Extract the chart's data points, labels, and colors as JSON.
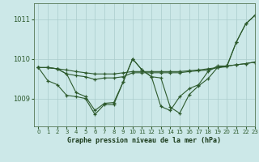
{
  "xlabel_label": "Graphe pression niveau de la mer (hPa)",
  "background_color": "#cce8e8",
  "grid_color": "#aacccc",
  "line_color": "#2d5a2d",
  "xlim": [
    -0.5,
    23
  ],
  "ylim": [
    1008.3,
    1011.4
  ],
  "yticks": [
    1009,
    1010,
    1011
  ],
  "xticks": [
    0,
    1,
    2,
    3,
    4,
    5,
    6,
    7,
    8,
    9,
    10,
    11,
    12,
    13,
    14,
    15,
    16,
    17,
    18,
    19,
    20,
    21,
    22,
    23
  ],
  "series": [
    [
      1009.78,
      1009.78,
      1009.75,
      1009.62,
      1009.15,
      1009.05,
      1008.7,
      1008.88,
      1008.9,
      1009.42,
      1010.0,
      1009.72,
      1009.55,
      1009.52,
      1008.78,
      1008.63,
      1009.1,
      1009.32,
      1009.5,
      1009.78,
      1009.8,
      1010.42,
      1010.88,
      1011.1
    ],
    [
      1009.78,
      1009.78,
      1009.75,
      1009.72,
      1009.68,
      1009.65,
      1009.62,
      1009.62,
      1009.62,
      1009.65,
      1009.68,
      1009.68,
      1009.68,
      1009.68,
      1009.68,
      1009.68,
      1009.7,
      1009.72,
      1009.75,
      1009.78,
      1009.82,
      1009.85,
      1009.88,
      1009.92
    ],
    [
      1009.78,
      1009.45,
      1009.35,
      1009.08,
      1009.05,
      1009.0,
      1008.6,
      1008.85,
      1008.85,
      1009.42,
      1010.0,
      1009.72,
      1009.55,
      1008.8,
      1008.7,
      1009.05,
      1009.25,
      1009.35,
      1009.68,
      1009.82,
      1009.82,
      1010.42,
      1010.88,
      1011.1
    ],
    [
      1009.78,
      1009.78,
      1009.75,
      1009.62,
      1009.58,
      1009.55,
      1009.48,
      1009.52,
      1009.52,
      1009.55,
      1009.65,
      1009.65,
      1009.65,
      1009.65,
      1009.65,
      1009.65,
      1009.68,
      1009.7,
      1009.72,
      1009.78,
      1009.82,
      1009.85,
      1009.88,
      1009.92
    ]
  ]
}
